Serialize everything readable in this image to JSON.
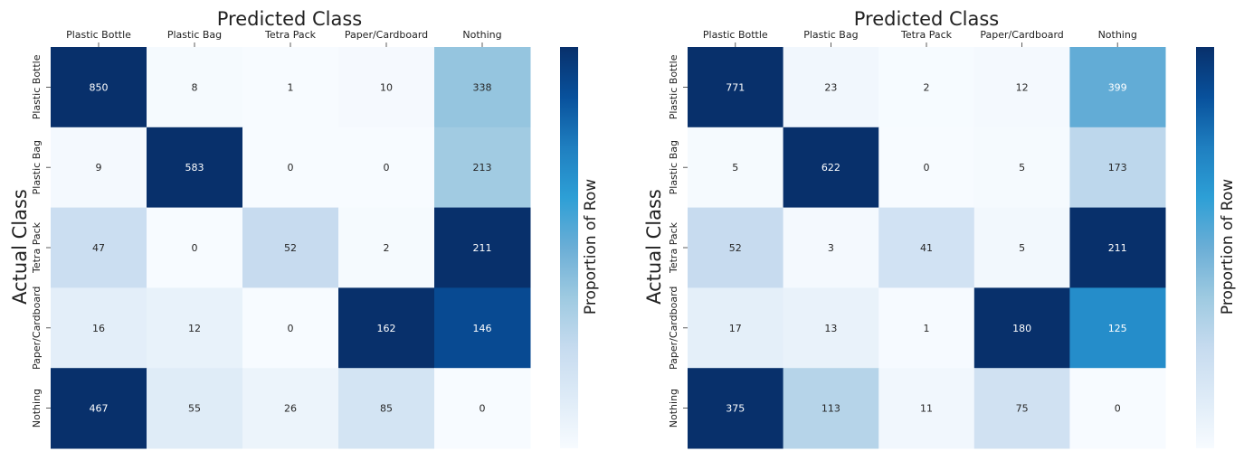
{
  "chart_data": [
    {
      "type": "heatmap",
      "title": "Predicted Class",
      "xlabel": "Predicted Class",
      "ylabel": "Actual Class",
      "colorbar_label": "Proportion of Row",
      "colormap": "Blues",
      "x_categories": [
        "Plastic Bottle",
        "Plastic Bag",
        "Tetra Pack",
        "Paper/Cardboard",
        "Nothing"
      ],
      "y_categories": [
        "Plastic Bottle",
        "Plastic Bag",
        "Tetra Pack",
        "Paper/Cardboard",
        "Nothing"
      ],
      "values": [
        [
          850,
          8,
          1,
          10,
          338
        ],
        [
          9,
          583,
          0,
          0,
          213
        ],
        [
          47,
          0,
          52,
          2,
          211
        ],
        [
          16,
          12,
          0,
          162,
          146
        ],
        [
          467,
          55,
          26,
          85,
          0
        ]
      ],
      "grid": false,
      "legend": "colorbar-right"
    },
    {
      "type": "heatmap",
      "title": "Predicted Class",
      "xlabel": "Predicted Class",
      "ylabel": "Actual Class",
      "colorbar_label": "Proportion of Row",
      "colormap": "Blues",
      "x_categories": [
        "Plastic Bottle",
        "Plastic Bag",
        "Tetra Pack",
        "Paper/Cardboard",
        "Nothing"
      ],
      "y_categories": [
        "Plastic Bottle",
        "Plastic Bag",
        "Tetra Pack",
        "Paper/Cardboard",
        "Nothing"
      ],
      "values": [
        [
          771,
          23,
          2,
          12,
          399
        ],
        [
          5,
          622,
          0,
          5,
          173
        ],
        [
          52,
          3,
          41,
          5,
          211
        ],
        [
          17,
          13,
          1,
          180,
          125
        ],
        [
          375,
          113,
          11,
          75,
          0
        ]
      ],
      "grid": false,
      "legend": "colorbar-right"
    }
  ]
}
